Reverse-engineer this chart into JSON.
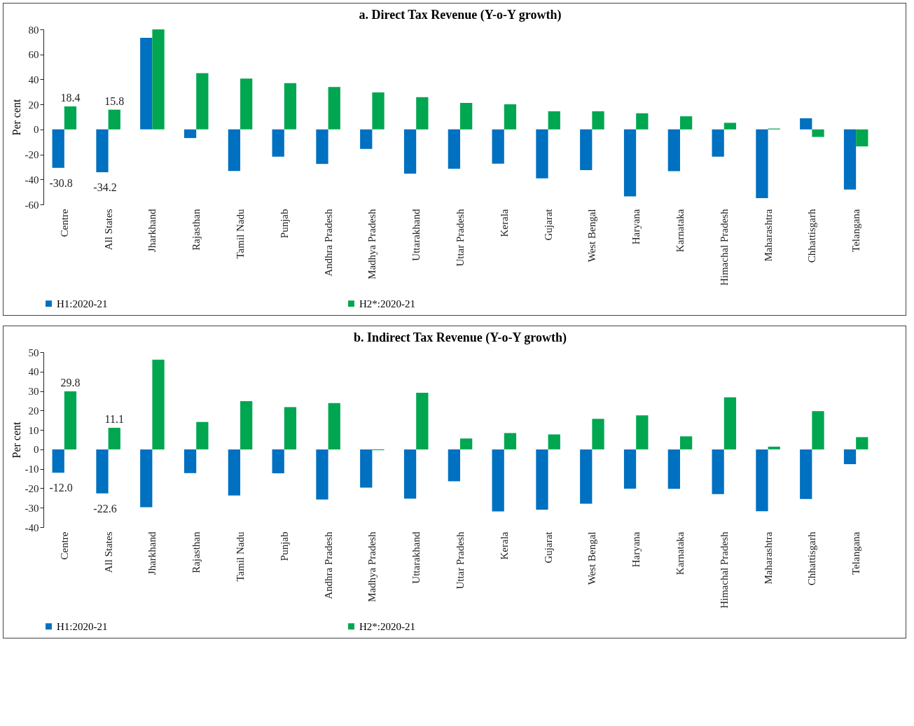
{
  "chart_data": [
    {
      "type": "bar",
      "title": "a. Direct Tax Revenue (Y-o-Y growth)",
      "ylabel": "Per cent",
      "categories": [
        "Centre",
        "All States",
        "Jharkhand",
        "Rajasthan",
        "Tamil Nadu",
        "Punjab",
        "Andhra Pradesh",
        "Madhya Pradesh",
        "Uttarakhand",
        "Uttar Pradesh",
        "Kerala",
        "Gujarat",
        "West Bengal",
        "Haryana",
        "Karnataka",
        "Himachal Pradesh",
        "Maharashtra",
        "Chhattisgarh",
        "Telangana"
      ],
      "series": [
        {
          "name": "H1:2020-21",
          "color": "#0070c0",
          "values": [
            -30.8,
            -34.2,
            73.3,
            -6.9,
            -33.2,
            -21.8,
            -27.6,
            -15.6,
            -35.4,
            -31.4,
            -27.4,
            -39.2,
            -32.5,
            -53.5,
            -33.4,
            -21.8,
            -55,
            8.9,
            -48.1
          ],
          "value_labels": [
            "-30.8",
            "-34.2",
            null,
            null,
            null,
            null,
            null,
            null,
            null,
            null,
            null,
            null,
            null,
            null,
            null,
            null,
            null,
            null,
            null
          ]
        },
        {
          "name": "H2*:2020-21",
          "color": "#00a650",
          "values": [
            18.4,
            15.8,
            80,
            45,
            40.6,
            37,
            33.9,
            29.6,
            25.8,
            21.2,
            20.1,
            14.5,
            14.5,
            12.9,
            10.5,
            5.3,
            0.7,
            -6,
            -13.6
          ],
          "value_labels": [
            "18.4",
            "15.8",
            null,
            null,
            null,
            null,
            null,
            null,
            null,
            null,
            null,
            null,
            null,
            null,
            null,
            null,
            null,
            null,
            null
          ]
        }
      ],
      "ylim": [
        -60,
        80
      ],
      "yticks": [
        -60,
        -40,
        -20,
        0,
        20,
        40,
        60,
        80
      ],
      "grid": false,
      "legend": "bottom"
    },
    {
      "type": "bar",
      "title": "b. Indirect Tax Revenue (Y-o-Y growth)",
      "ylabel": "Per cent",
      "categories": [
        "Centre",
        "All States",
        "Jharkhand",
        "Rajasthan",
        "Tamil Nadu",
        "Punjab",
        "Andhra Pradesh",
        "Madhya Pradesh",
        "Uttarakhand",
        "Uttar Pradesh",
        "Kerala",
        "Gujarat",
        "West Bengal",
        "Haryana",
        "Karnataka",
        "Himachal Pradesh",
        "Maharashtra",
        "Chhattisgarh",
        "Telangana"
      ],
      "series": [
        {
          "name": "H1:2020-21",
          "color": "#0070c0",
          "values": [
            -12,
            -22.6,
            -29.7,
            -12.2,
            -23.7,
            -12.3,
            -25.8,
            -19.7,
            -25.3,
            -16.4,
            -31.9,
            -31,
            -27.9,
            -20.2,
            -20.3,
            -23,
            -31.8,
            -25.5,
            -7.6
          ],
          "value_labels": [
            "-12.0",
            "-22.6",
            null,
            null,
            null,
            null,
            null,
            null,
            null,
            null,
            null,
            null,
            null,
            null,
            null,
            null,
            null,
            null,
            null
          ]
        },
        {
          "name": "H2*:2020-21",
          "color": "#00a650",
          "values": [
            29.8,
            11.1,
            46.1,
            14.1,
            24.8,
            21.7,
            23.8,
            -0.4,
            29.1,
            5.6,
            8.4,
            7.7,
            15.7,
            17.5,
            6.7,
            26.8,
            1.4,
            19.7,
            6.3
          ],
          "value_labels": [
            "29.8",
            "11.1",
            null,
            null,
            null,
            null,
            null,
            null,
            null,
            null,
            null,
            null,
            null,
            null,
            null,
            null,
            null,
            null,
            null
          ]
        }
      ],
      "ylim": [
        -40,
        50
      ],
      "yticks": [
        -40,
        -30,
        -20,
        -10,
        0,
        10,
        20,
        30,
        40,
        50
      ],
      "grid": false,
      "legend": "bottom"
    }
  ]
}
